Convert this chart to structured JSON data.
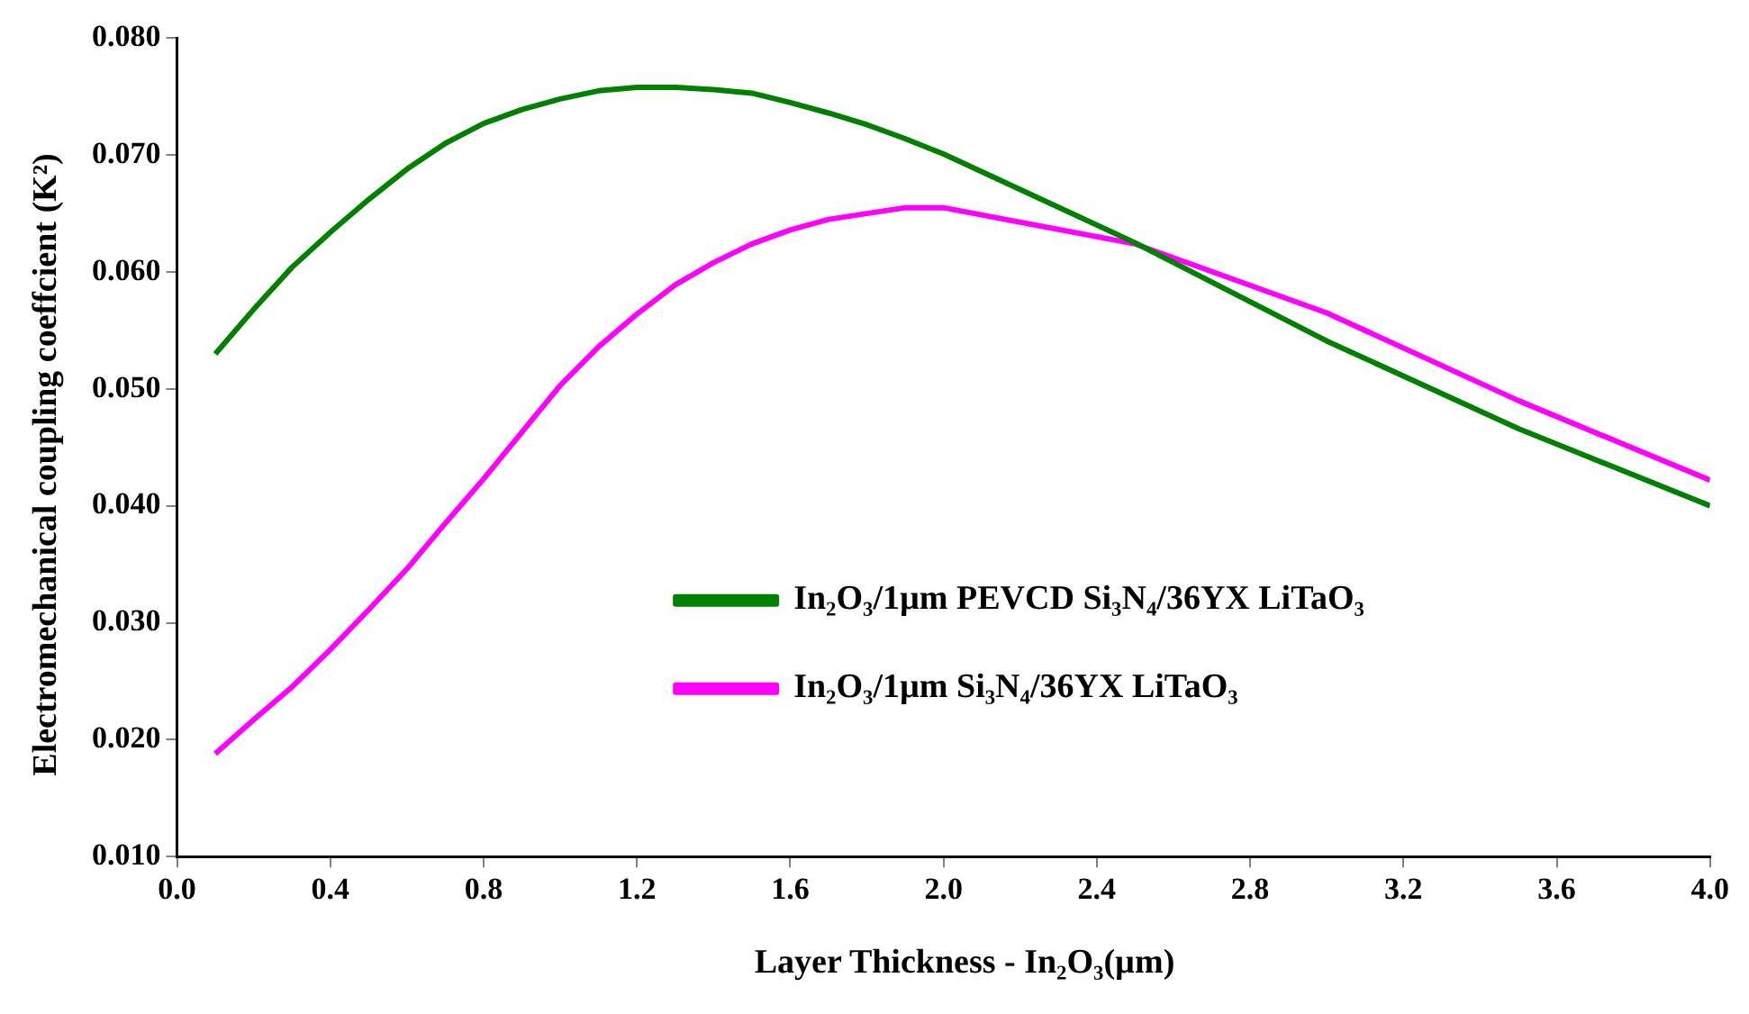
{
  "chart_data": {
    "type": "line",
    "xlabel": "Layer Thickness - In₂O₃(µm)",
    "ylabel": "Electromechanical coupling coeffcient (K²)",
    "x": [
      0.1,
      0.2,
      0.3,
      0.4,
      0.5,
      0.6,
      0.7,
      0.8,
      0.9,
      1.0,
      1.1,
      1.2,
      1.3,
      1.4,
      1.5,
      1.6,
      1.7,
      1.8,
      1.9,
      2.0,
      2.5,
      3.0,
      3.5,
      4.0
    ],
    "series": [
      {
        "name": "In₂O₃/1µm PEVCD Si₃N₄/36YX LiTaO₃",
        "color": "#008000",
        "values": [
          0.053,
          0.0568,
          0.0604,
          0.0634,
          0.0662,
          0.0688,
          0.071,
          0.0727,
          0.0739,
          0.0748,
          0.0755,
          0.0758,
          0.0758,
          0.0756,
          0.0753,
          0.0745,
          0.0736,
          0.0726,
          0.0714,
          0.0701,
          0.0625,
          0.0541,
          0.0466,
          0.04
        ]
      },
      {
        "name": "In₂O₃/1µm Si₃N₄/36YX LiTaO₃",
        "color": "#ff00ff",
        "values": [
          0.0188,
          0.0217,
          0.0245,
          0.0277,
          0.0311,
          0.0346,
          0.0385,
          0.0423,
          0.0463,
          0.0503,
          0.0536,
          0.0564,
          0.0589,
          0.0608,
          0.0624,
          0.0636,
          0.0645,
          0.065,
          0.0655,
          0.0655,
          0.0624,
          0.0565,
          0.049,
          0.0422
        ]
      }
    ],
    "xlim": [
      0,
      4
    ],
    "xticks": [
      {
        "value": 0,
        "label": "0.0"
      },
      {
        "value": 0.4,
        "label": "0.4"
      },
      {
        "value": 0.8,
        "label": "0.8"
      },
      {
        "value": 1.2,
        "label": "1.2"
      },
      {
        "value": 1.6,
        "label": "1.6"
      },
      {
        "value": 2.0,
        "label": "2.0"
      },
      {
        "value": 2.4,
        "label": "2.4"
      },
      {
        "value": 2.8,
        "label": "2.8"
      },
      {
        "value": 3.2,
        "label": "3.2"
      },
      {
        "value": 3.6,
        "label": "3.6"
      },
      {
        "value": 4.0,
        "label": "4.0"
      }
    ],
    "ylim": [
      0.01,
      0.08
    ],
    "yticks": [
      {
        "value": 0.01,
        "label": "0.010"
      },
      {
        "value": 0.02,
        "label": "0.020"
      },
      {
        "value": 0.03,
        "label": "0.030"
      },
      {
        "value": 0.04,
        "label": "0.040"
      },
      {
        "value": 0.05,
        "label": "0.050"
      },
      {
        "value": 0.06,
        "label": "0.060"
      },
      {
        "value": 0.07,
        "label": "0.070"
      },
      {
        "value": 0.08,
        "label": "0.080"
      }
    ],
    "grid": false,
    "legend": "center",
    "marker": "none",
    "line_style": "solid"
  }
}
